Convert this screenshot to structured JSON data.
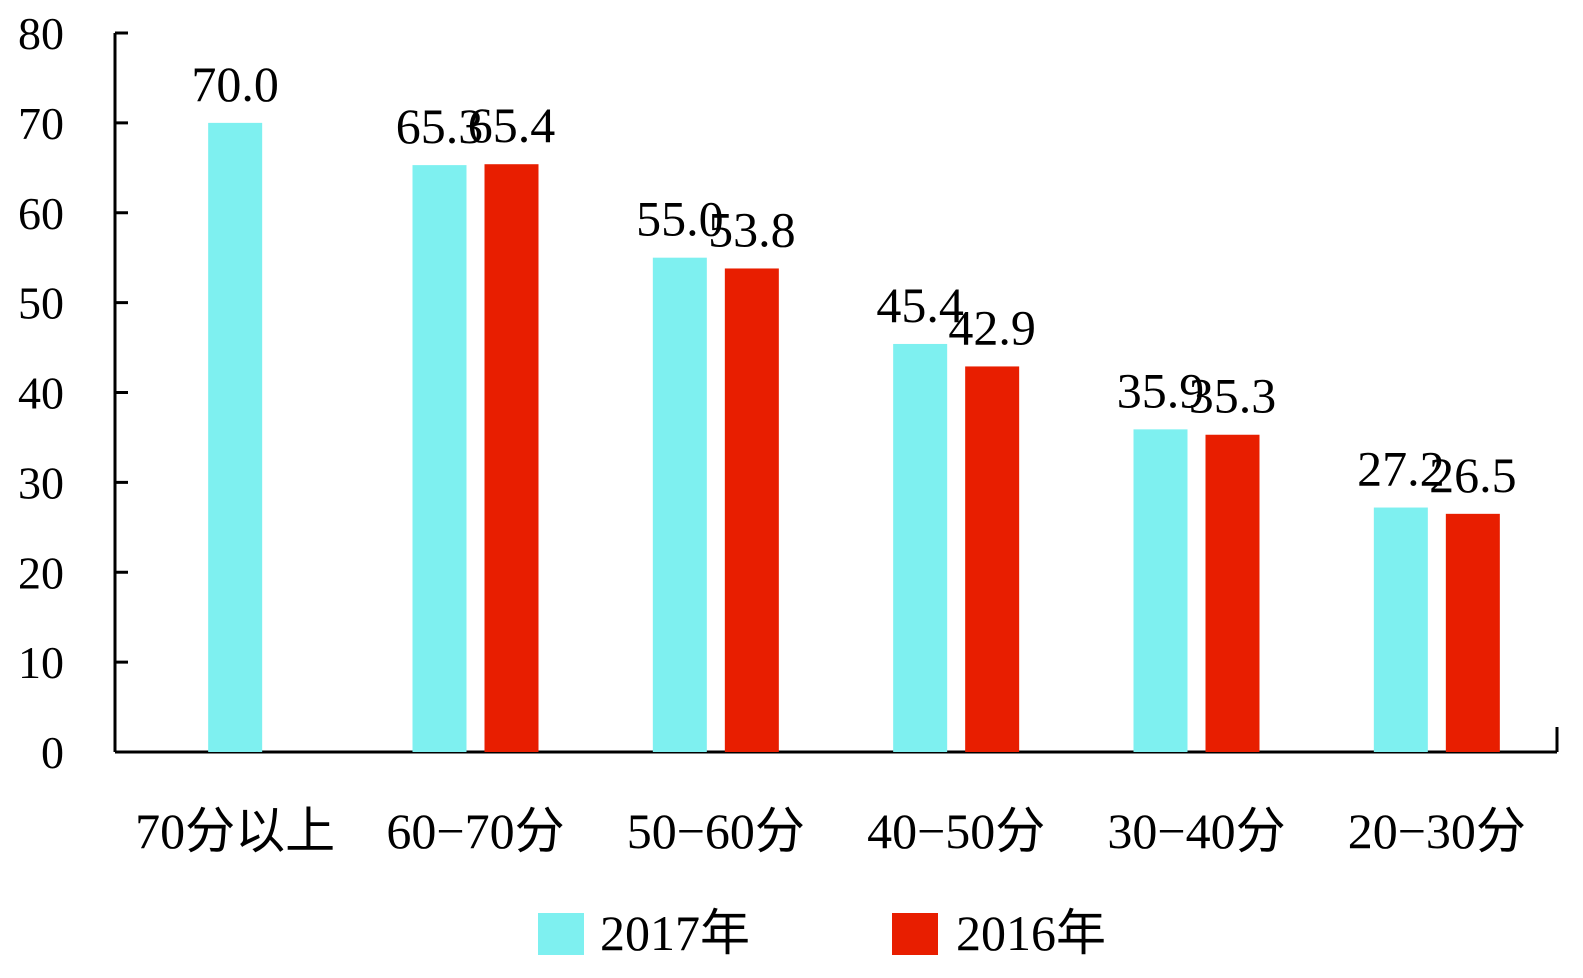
{
  "chart_data": {
    "type": "bar",
    "categories": [
      "70分以上",
      "60−70分",
      "50−60分",
      "40−50分",
      "30−40分",
      "20−30分"
    ],
    "series": [
      {
        "name": "2017年",
        "color": "#7ef0f0",
        "values": [
          70.0,
          65.3,
          55.0,
          45.4,
          35.9,
          27.2
        ]
      },
      {
        "name": "2016年",
        "color": "#e81e00",
        "values": [
          null,
          65.4,
          53.8,
          42.9,
          35.3,
          26.5
        ]
      }
    ],
    "value_labels": [
      [
        "70.0",
        "65.3",
        "55.0",
        "45.4",
        "35.9",
        "27.2"
      ],
      [
        "",
        "65.4",
        "53.8",
        "42.9",
        "35.3",
        "26.5"
      ]
    ],
    "ylim": [
      0,
      80
    ],
    "yticks": [
      0,
      10,
      20,
      30,
      40,
      50,
      60,
      70,
      80
    ],
    "title": "",
    "xlabel": "",
    "ylabel": "",
    "grid": false,
    "legend_position": "bottom-center"
  }
}
